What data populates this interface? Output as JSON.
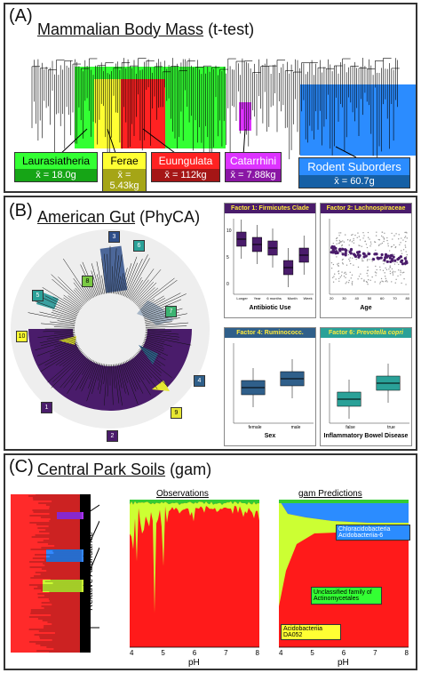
{
  "panel_a": {
    "letter": "(A)",
    "title": "Mammalian Body Mass",
    "title_suffix": " (t-test)",
    "clades": [
      {
        "name": "Laurasiatheria",
        "mean": "x̄ = 18.0g",
        "color": "#33ff33",
        "mean_bg": "#16a516"
      },
      {
        "name": "Ferae",
        "mean": "x̄ = 5.43kg",
        "color": "#ffff33",
        "mean_bg": "#a5a516"
      },
      {
        "name": "Euungulata",
        "mean": "x̄ = 112kg",
        "color": "#ff2222",
        "mean_bg": "#a51616"
      },
      {
        "name": "Catarrhini",
        "mean": "x̄ = 7.88kg",
        "color": "#dd33ff",
        "mean_bg": "#8a16a5"
      },
      {
        "name": "Rodent Suborders",
        "mean": "x̄ = 60.7g",
        "color": "#2b8cff",
        "mean_bg": "#1660a5"
      }
    ]
  },
  "panel_b": {
    "letter": "(B)",
    "title": "American Gut",
    "title_suffix": " (PhyCA)",
    "tree_numbers": [
      "1",
      "2",
      "3",
      "4",
      "5",
      "6",
      "7",
      "8",
      "9",
      "10"
    ],
    "factors": [
      {
        "head": "Factor 1: Firmicutes Clade",
        "xlabel": "Antibiotic Use",
        "ticks": [
          "Longer",
          "Year",
          "6 months",
          "Month",
          "Week"
        ],
        "color": "#4a1c6b"
      },
      {
        "head": "Factor 2: Lachnospiraceae",
        "xlabel": "Age",
        "ticks": [
          "20",
          "30",
          "40",
          "50",
          "60",
          "70",
          "80"
        ],
        "color": "#4a1c6b"
      },
      {
        "head": "Factor 4: Ruminococc.",
        "xlabel": "Sex",
        "ticks": [
          "female",
          "male"
        ],
        "color": "#2f5f8a"
      },
      {
        "head": "Factor 6: ",
        "head_italic": "Prevotella copri",
        "xlabel": "Inflammatory Bowel Disease",
        "ticks": [
          "false",
          "true"
        ],
        "color": "#2aa198"
      }
    ]
  },
  "panel_c": {
    "letter": "(C)",
    "title": "Central Park Soils",
    "title_suffix": " (gam)",
    "obs_title": "Observations",
    "pred_title": "gam Predictions",
    "ylabel": "Relative Abundance",
    "xlabel": "pH",
    "x_ticks": [
      "4",
      "5",
      "6",
      "7",
      "8"
    ],
    "legend_top": [
      "Chloracidobacteria",
      "Acidobacteriia-6"
    ],
    "legend_mid": "Unclassified family of Actinomycetales",
    "legend_bottom": [
      "Acidobacteriia",
      "DA052"
    ]
  }
}
